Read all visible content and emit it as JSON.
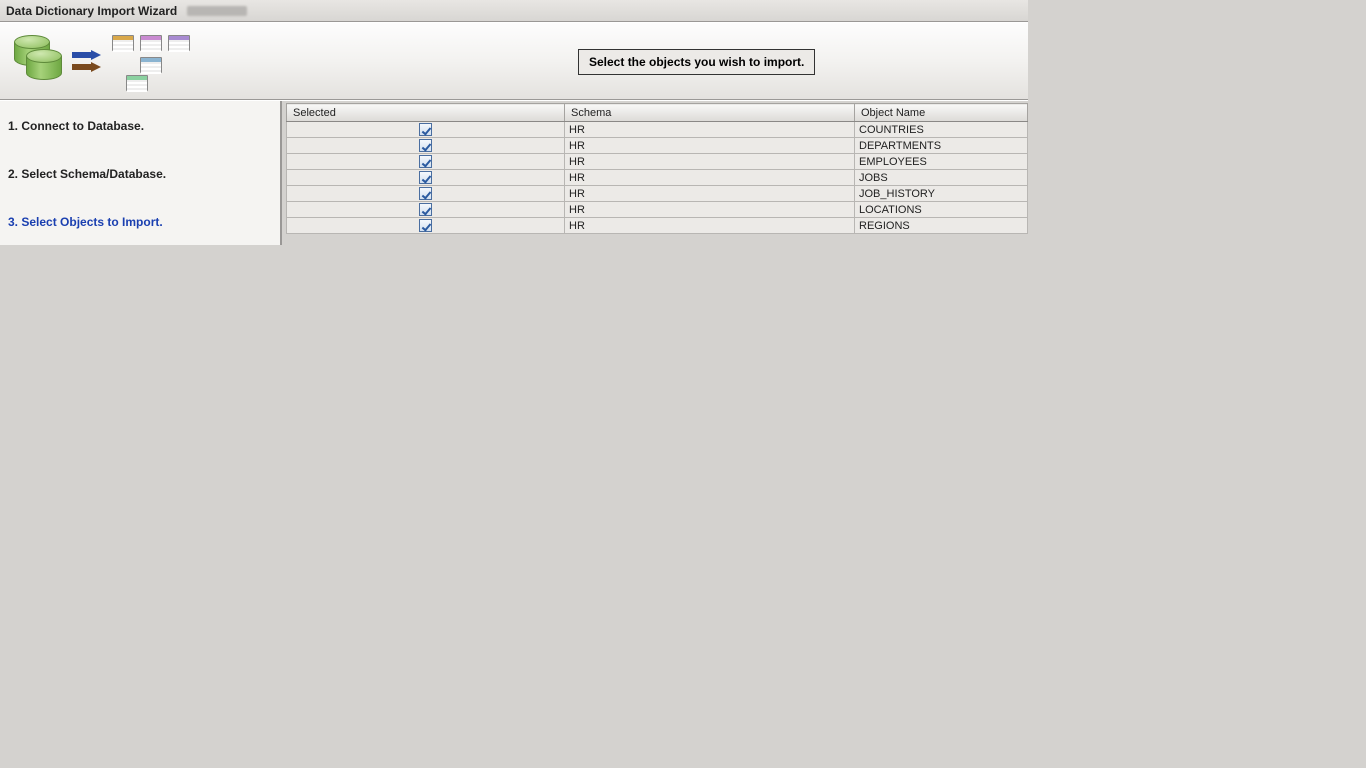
{
  "window": {
    "title": "Data Dictionary Import Wizard"
  },
  "header": {
    "instruction": "Select the objects you wish to import."
  },
  "sidebar": {
    "steps": [
      {
        "label": "1. Connect to Database.",
        "active": false
      },
      {
        "label": "2. Select Schema/Database.",
        "active": false
      },
      {
        "label": "3. Select Objects to Import.",
        "active": true
      }
    ]
  },
  "table": {
    "columns": {
      "selected": "Selected",
      "schema": "Schema",
      "object_name": "Object Name"
    },
    "rows": [
      {
        "selected": true,
        "schema": "HR",
        "object_name": "COUNTRIES"
      },
      {
        "selected": true,
        "schema": "HR",
        "object_name": "DEPARTMENTS"
      },
      {
        "selected": true,
        "schema": "HR",
        "object_name": "EMPLOYEES"
      },
      {
        "selected": true,
        "schema": "HR",
        "object_name": "JOBS"
      },
      {
        "selected": true,
        "schema": "HR",
        "object_name": "JOB_HISTORY"
      },
      {
        "selected": true,
        "schema": "HR",
        "object_name": "LOCATIONS"
      },
      {
        "selected": true,
        "schema": "HR",
        "object_name": "REGIONS"
      }
    ]
  },
  "colors": {
    "background": "#d4d2cf",
    "panel_gradient_top": "#fdfdfd",
    "panel_gradient_bottom": "#e4e2df",
    "border": "#9a9896",
    "active_step": "#1a3fb0",
    "header_th_top": "#f8f8f7",
    "header_th_bottom": "#dcdad7",
    "cell_bg": "#eceae7",
    "checkbox_border": "#4a6ea0",
    "checkbox_check": "#2a5aa0",
    "db_green_light": "#a6d27a",
    "db_green_dark": "#6fa843",
    "arrow_blue": "#2a4ea8",
    "arrow_brown": "#7a4a1e"
  }
}
